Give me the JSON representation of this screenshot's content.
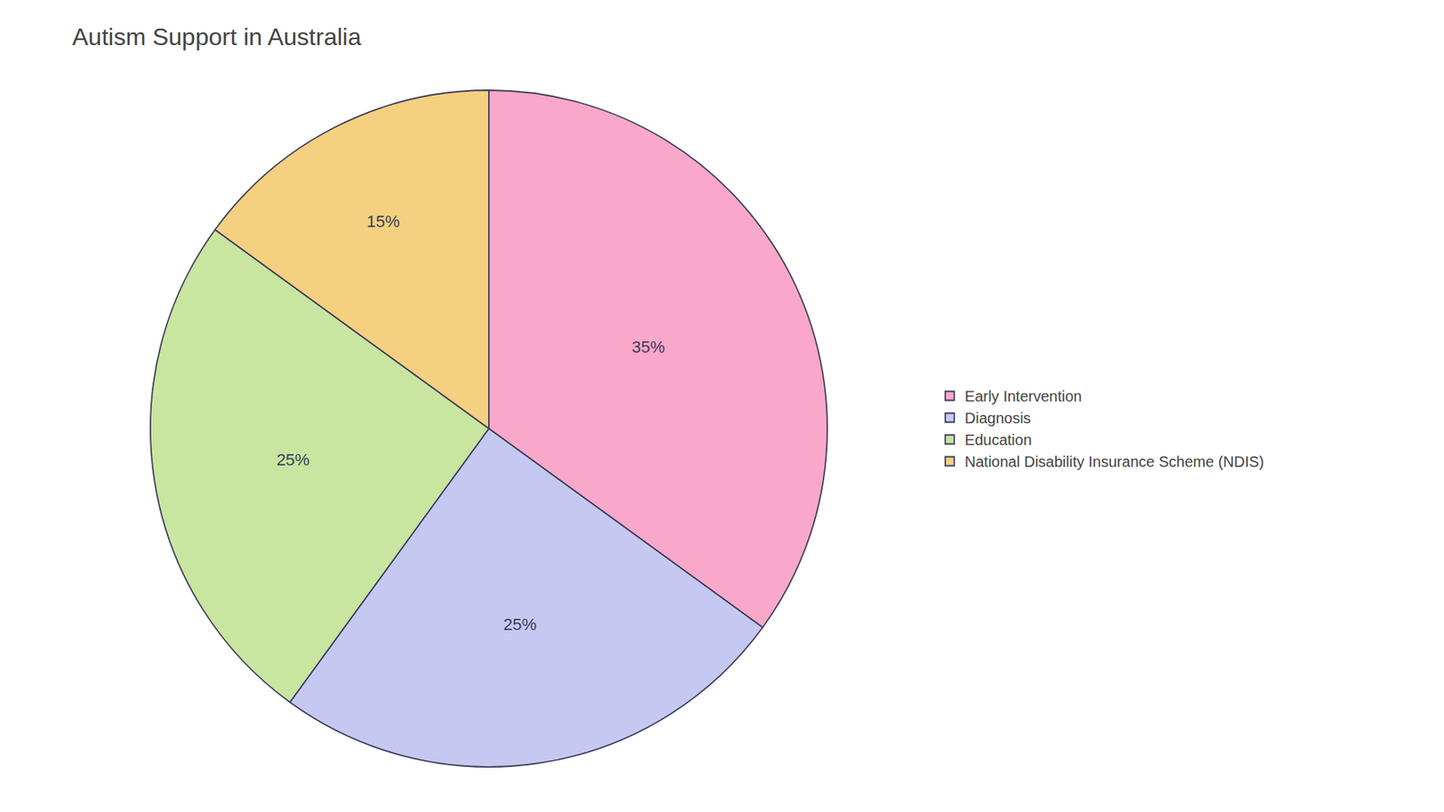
{
  "chart_data": {
    "type": "pie",
    "title": "Autism Support in Australia",
    "categories": [
      "Early Intervention",
      "Diagnosis",
      "Education",
      "National Disability Insurance Scheme (NDIS)"
    ],
    "values": [
      35,
      25,
      25,
      15
    ],
    "value_labels": [
      "35%",
      "25%",
      "25%",
      "15%"
    ],
    "colors": [
      "#F9A8C9",
      "#C5C8F0",
      "#C8E6A0",
      "#F5D080"
    ],
    "data_labels": true,
    "legend": "right"
  }
}
